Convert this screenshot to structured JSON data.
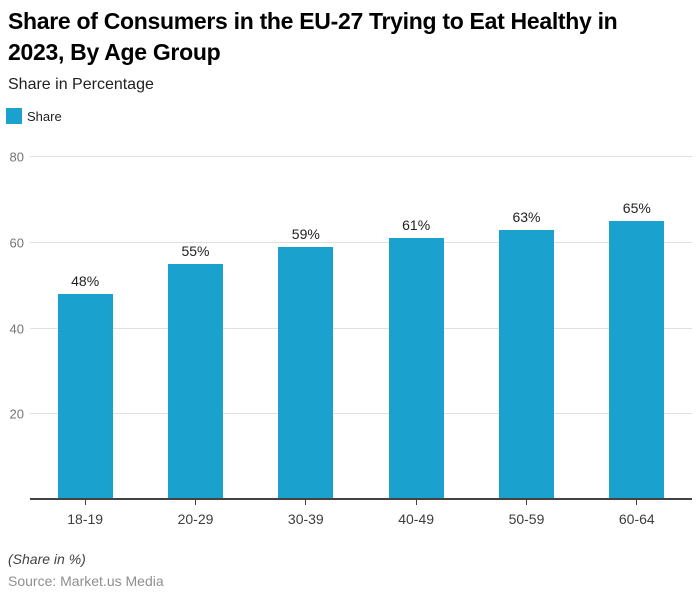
{
  "header": {
    "title_line1": "Share of Consumers in the EU-27 Trying to Eat Healthy in",
    "title_line2": "2023, By Age Group",
    "subtitle": "Share in Percentage"
  },
  "legend": {
    "label": "Share",
    "swatch_color": "#1AA1CE"
  },
  "chart_data": {
    "type": "bar",
    "title": "Share of Consumers in the EU-27 Trying to Eat Healthy in 2023, By Age Group",
    "subtitle": "Share in Percentage",
    "categories": [
      "18-19",
      "20-29",
      "30-39",
      "40-49",
      "50-59",
      "60-64"
    ],
    "series": [
      {
        "name": "Share",
        "values": [
          48,
          55,
          59,
          61,
          63,
          65
        ],
        "labels": [
          "48%",
          "55%",
          "59%",
          "61%",
          "63%",
          "65%"
        ]
      }
    ],
    "xlabel": "",
    "ylabel": "Share in Percentage",
    "ylim": [
      0,
      80
    ],
    "yticks": [
      20,
      40,
      60,
      80
    ],
    "grid": true,
    "legend_position": "top-left",
    "bar_color": "#1AA1CE",
    "gridline_color": "#e0e0e0",
    "axis_color": "#424242"
  },
  "footer": {
    "note": "(Share in %)",
    "source": "Source: Market.us Media"
  }
}
